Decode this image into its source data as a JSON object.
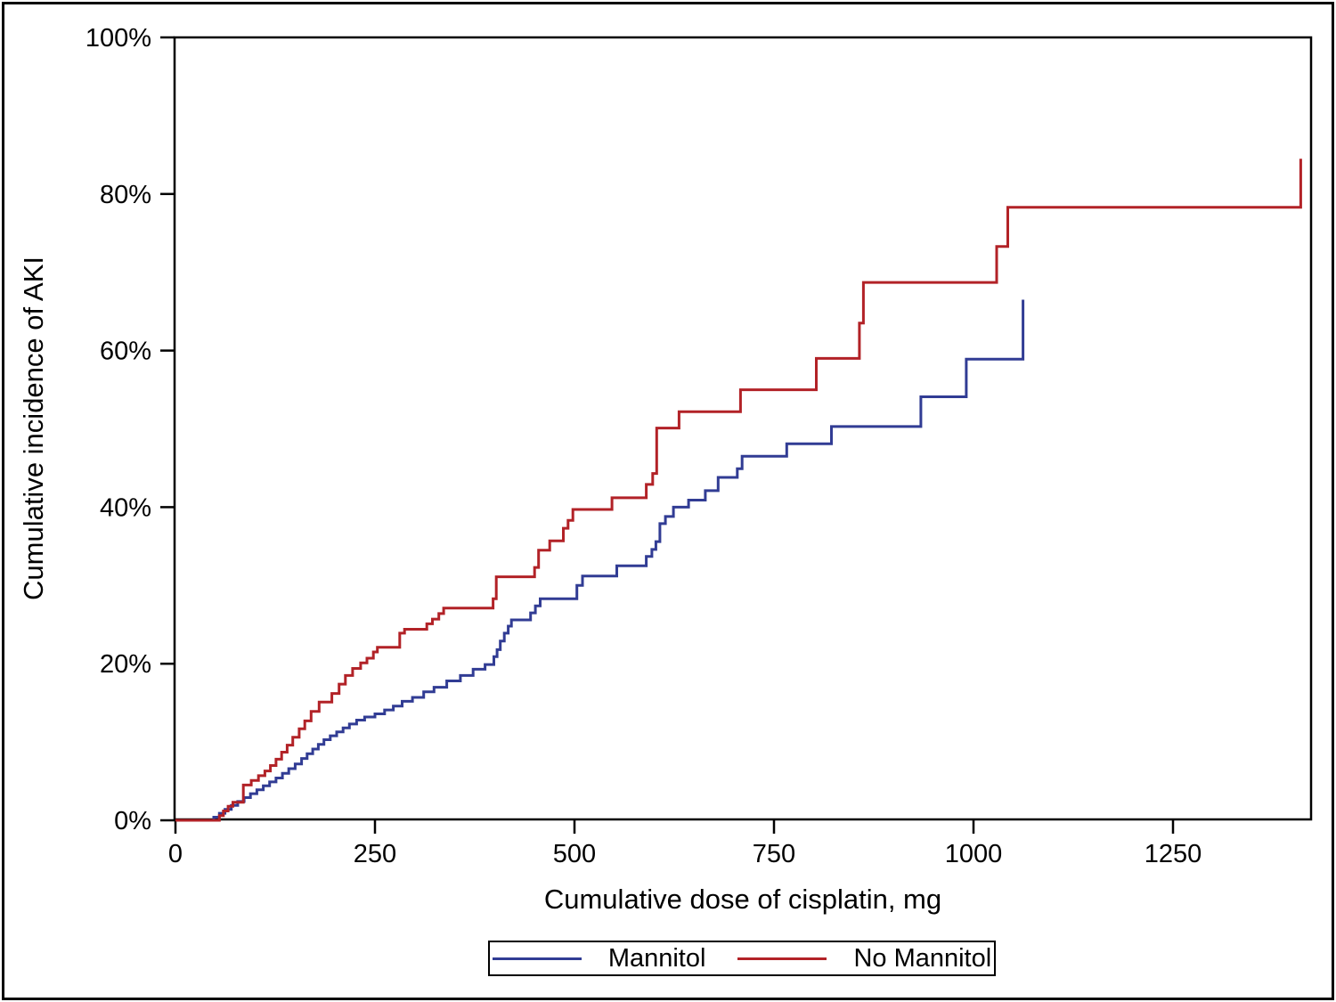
{
  "figure": {
    "background": "#ffffff",
    "border_color": "#000000",
    "axis_color": "#000000",
    "tick_label_color": "#000000"
  },
  "chart_data": {
    "type": "line",
    "subtype": "step-function-cumulative-incidence",
    "title": "",
    "xlabel": "Cumulative dose of cisplatin, mg",
    "ylabel": "Cumulative incidence of AKI",
    "xlim": [
      0,
      1425
    ],
    "ylim": [
      0,
      100
    ],
    "x_ticks": [
      0,
      250,
      500,
      750,
      1000,
      1250
    ],
    "y_ticks": [
      0,
      20,
      40,
      60,
      80,
      100
    ],
    "y_tick_suffix": "%",
    "grid": false,
    "legend_position": "bottom-center",
    "series": [
      {
        "name": "Mannitol",
        "color": "#313c94",
        "points": [
          [
            0,
            0
          ],
          [
            48,
            0.4
          ],
          [
            55,
            0.9
          ],
          [
            62,
            1.4
          ],
          [
            70,
            1.9
          ],
          [
            78,
            2.4
          ],
          [
            86,
            2.9
          ],
          [
            94,
            3.4
          ],
          [
            102,
            3.9
          ],
          [
            110,
            4.4
          ],
          [
            118,
            4.9
          ],
          [
            126,
            5.4
          ],
          [
            134,
            6.0
          ],
          [
            142,
            6.6
          ],
          [
            150,
            7.2
          ],
          [
            158,
            7.9
          ],
          [
            165,
            8.5
          ],
          [
            172,
            9.1
          ],
          [
            179,
            9.7
          ],
          [
            186,
            10.3
          ],
          [
            194,
            10.8
          ],
          [
            202,
            11.3
          ],
          [
            210,
            11.8
          ],
          [
            218,
            12.3
          ],
          [
            227,
            12.8
          ],
          [
            237,
            13.2
          ],
          [
            250,
            13.6
          ],
          [
            262,
            14.1
          ],
          [
            273,
            14.6
          ],
          [
            284,
            15.2
          ],
          [
            297,
            15.7
          ],
          [
            311,
            16.4
          ],
          [
            324,
            17.0
          ],
          [
            340,
            17.8
          ],
          [
            357,
            18.5
          ],
          [
            373,
            19.3
          ],
          [
            388,
            19.9
          ],
          [
            399,
            20.9
          ],
          [
            403,
            21.8
          ],
          [
            407,
            22.9
          ],
          [
            412,
            23.9
          ],
          [
            417,
            24.8
          ],
          [
            421,
            25.6
          ],
          [
            445,
            26.5
          ],
          [
            451,
            27.4
          ],
          [
            457,
            28.3
          ],
          [
            503,
            30.0
          ],
          [
            510,
            31.2
          ],
          [
            553,
            32.5
          ],
          [
            590,
            33.7
          ],
          [
            597,
            34.6
          ],
          [
            602,
            35.6
          ],
          [
            607,
            37.9
          ],
          [
            614,
            38.8
          ],
          [
            624,
            40.0
          ],
          [
            643,
            40.9
          ],
          [
            664,
            42.1
          ],
          [
            680,
            43.8
          ],
          [
            704,
            44.9
          ],
          [
            710,
            46.5
          ],
          [
            766,
            48.1
          ],
          [
            822,
            50.3
          ],
          [
            934,
            54.1
          ],
          [
            991,
            58.9
          ],
          [
            1062,
            66.5
          ]
        ]
      },
      {
        "name": "No Mannitol",
        "color": "#b22227",
        "points": [
          [
            0,
            0
          ],
          [
            55,
            0.6
          ],
          [
            60,
            1.2
          ],
          [
            66,
            1.8
          ],
          [
            72,
            2.3
          ],
          [
            85,
            4.5
          ],
          [
            95,
            5.1
          ],
          [
            104,
            5.7
          ],
          [
            112,
            6.3
          ],
          [
            119,
            7.0
          ],
          [
            126,
            7.8
          ],
          [
            133,
            8.7
          ],
          [
            140,
            9.6
          ],
          [
            147,
            10.6
          ],
          [
            155,
            11.7
          ],
          [
            162,
            12.7
          ],
          [
            170,
            13.9
          ],
          [
            180,
            15.1
          ],
          [
            196,
            16.2
          ],
          [
            205,
            17.4
          ],
          [
            213,
            18.5
          ],
          [
            222,
            19.4
          ],
          [
            232,
            20.1
          ],
          [
            240,
            20.7
          ],
          [
            248,
            21.5
          ],
          [
            253,
            22.1
          ],
          [
            281,
            23.9
          ],
          [
            287,
            24.4
          ],
          [
            315,
            25.1
          ],
          [
            322,
            25.7
          ],
          [
            330,
            26.4
          ],
          [
            336,
            27.1
          ],
          [
            398,
            28.3
          ],
          [
            402,
            31.1
          ],
          [
            450,
            32.3
          ],
          [
            455,
            34.5
          ],
          [
            469,
            35.7
          ],
          [
            486,
            37.3
          ],
          [
            492,
            38.3
          ],
          [
            498,
            39.7
          ],
          [
            547,
            41.2
          ],
          [
            590,
            42.9
          ],
          [
            598,
            44.3
          ],
          [
            603,
            50.1
          ],
          [
            631,
            52.2
          ],
          [
            708,
            55.0
          ],
          [
            803,
            59.0
          ],
          [
            857,
            63.5
          ],
          [
            862,
            68.7
          ],
          [
            1029,
            73.3
          ],
          [
            1043,
            78.3
          ],
          [
            1410,
            84.5
          ]
        ]
      }
    ]
  },
  "legend": {
    "items": [
      {
        "label": "Mannitol",
        "color": "#313c94"
      },
      {
        "label": "No Mannitol",
        "color": "#b22227"
      }
    ]
  }
}
